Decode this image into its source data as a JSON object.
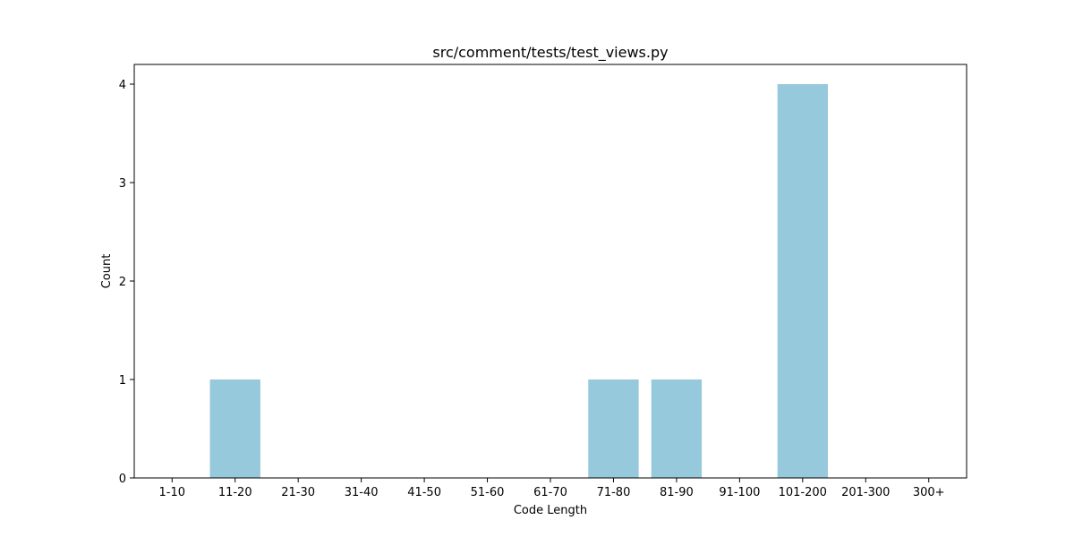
{
  "chart_data": {
    "type": "bar",
    "title": "src/comment/tests/test_views.py",
    "xlabel": "Code Length",
    "ylabel": "Count",
    "categories": [
      "1-10",
      "11-20",
      "21-30",
      "31-40",
      "41-50",
      "51-60",
      "61-70",
      "71-80",
      "81-90",
      "91-100",
      "101-200",
      "201-300",
      "300+"
    ],
    "values": [
      0,
      1,
      0,
      0,
      0,
      0,
      0,
      1,
      1,
      0,
      4,
      0,
      0
    ],
    "ylim": [
      0,
      4.2
    ],
    "yticks": [
      0,
      1,
      2,
      3,
      4
    ],
    "grid": false,
    "bar_color": "#96c9dc"
  }
}
